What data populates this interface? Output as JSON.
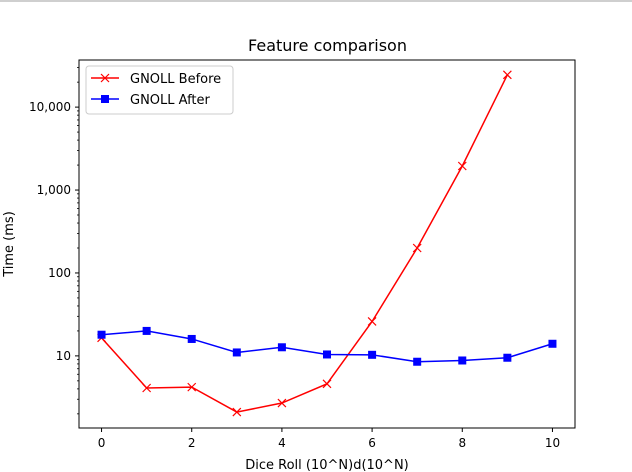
{
  "chart_data": {
    "type": "line",
    "title": "Feature comparison",
    "xlabel": "Dice Roll (10^N)d(10^N)",
    "ylabel": "Time (ms)",
    "yscale": "log",
    "xlim": [
      -0.5,
      10.5
    ],
    "ylim": [
      1.35,
      37000
    ],
    "xticks": [
      0,
      2,
      4,
      6,
      8,
      10
    ],
    "yticks": [
      10,
      100,
      1000,
      10000
    ],
    "ytick_labels": [
      "10",
      "100",
      "1,000",
      "10,000"
    ],
    "grid": false,
    "legend_position": "top-left",
    "series": [
      {
        "name": "GNOLL Before",
        "color": "#ff0000",
        "marker": "x",
        "x": [
          0,
          1,
          2,
          3,
          4,
          5,
          6,
          7,
          8,
          9
        ],
        "y": [
          16.5,
          4.1,
          4.2,
          2.1,
          2.7,
          4.6,
          26,
          200,
          1950,
          24500
        ]
      },
      {
        "name": "GNOLL After",
        "color": "#0000ff",
        "marker": "square",
        "x": [
          0,
          1,
          2,
          3,
          4,
          5,
          6,
          7,
          8,
          9,
          10
        ],
        "y": [
          18,
          20,
          16,
          11,
          12.7,
          10.4,
          10.3,
          8.5,
          8.8,
          9.5,
          14
        ]
      }
    ]
  }
}
